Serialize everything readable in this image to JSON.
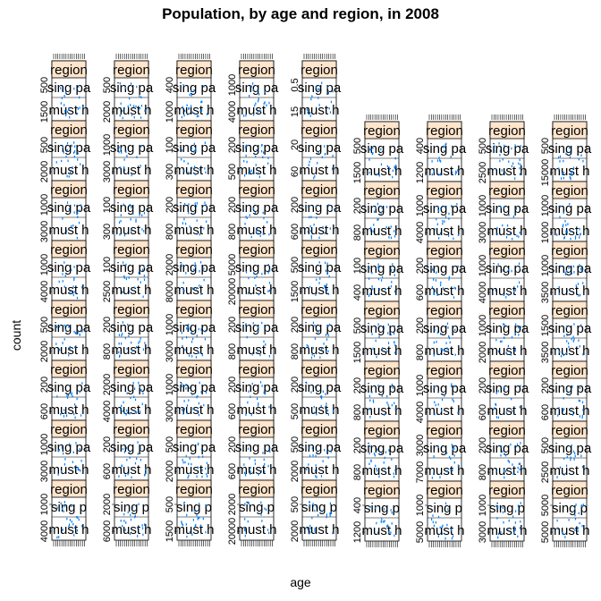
{
  "chart_data": {
    "type": "scatter",
    "title": "Population, by age and region, in 2008",
    "xlabel": "age",
    "ylabel": "count",
    "strip_label": "region",
    "strip_text_row_1": "sing pa",
    "strip_text_row_2": "must h",
    "strip_text_alt": "sing p",
    "point_color": "#0080ff",
    "strip_color": "#ffe5cc",
    "panel_columns": [
      {
        "rows": 8,
        "y_ticks": [
          [
            "500",
            "1500"
          ],
          [
            "500",
            "2000"
          ],
          [
            "1000",
            "3000"
          ],
          [
            "1000",
            "4000"
          ],
          [
            "500",
            "2000"
          ],
          [
            "200",
            "600"
          ],
          [
            "1000",
            "3000"
          ],
          [
            "1000",
            "4000"
          ]
        ]
      },
      {
        "rows": 8,
        "y_ticks": [
          [
            "500",
            "2000"
          ],
          [
            "1000",
            "3000"
          ],
          [
            "100",
            "300"
          ],
          [
            "100",
            "2500"
          ],
          [
            "200",
            "800"
          ],
          [
            "2000",
            "4000"
          ],
          [
            "200",
            "600"
          ],
          [
            "2000",
            "6000"
          ]
        ]
      },
      {
        "rows": 8,
        "y_ticks": [
          [
            "400",
            "1000"
          ],
          [
            "100",
            "300"
          ],
          [
            "200",
            "800"
          ],
          [
            "2000",
            "8000"
          ],
          [
            "1000",
            "3000"
          ],
          [
            "1000",
            "3000"
          ],
          [
            "500",
            "2000"
          ],
          [
            "500",
            "1500"
          ]
        ]
      },
      {
        "rows": 8,
        "y_ticks": [
          [
            "1000",
            "4000"
          ],
          [
            "200",
            "500"
          ],
          [
            "200",
            "800"
          ],
          [
            "5000",
            "20000"
          ],
          [
            "200",
            "800"
          ],
          [
            "200",
            "600"
          ],
          [
            "200",
            "600"
          ],
          [
            "2000",
            "20000"
          ]
        ]
      },
      {
        "rows": 8,
        "y_ticks": [
          [
            "0.5",
            "15"
          ],
          [
            "20",
            "60"
          ],
          [
            "200",
            "600"
          ],
          [
            "500",
            "1500"
          ],
          [
            "200",
            "800"
          ],
          [
            "200",
            "500"
          ],
          [
            "500",
            "2000"
          ],
          [
            "500",
            "2000"
          ]
        ]
      },
      {
        "rows": 7,
        "y_ticks": [
          [
            "500",
            "1500"
          ],
          [
            "200",
            "800"
          ],
          [
            "100",
            "400"
          ],
          [
            "500",
            "1500"
          ],
          [
            "200",
            "800"
          ],
          [
            "200",
            "800"
          ],
          [
            "400",
            "1200"
          ]
        ]
      },
      {
        "rows": 7,
        "y_ticks": [
          [
            "400",
            "1200"
          ],
          [
            "1000",
            "4000"
          ],
          [
            "200",
            "600"
          ],
          [
            "200",
            "800"
          ],
          [
            "1000",
            "4000"
          ],
          [
            "3000",
            "7000"
          ],
          [
            "1000",
            "5000"
          ]
        ]
      },
      {
        "rows": 7,
        "y_ticks": [
          [
            "500",
            "2500"
          ],
          [
            "1000",
            "3000"
          ],
          [
            "1000",
            "4000"
          ],
          [
            "1000",
            "2000"
          ],
          [
            "200",
            "600"
          ],
          [
            "200",
            "800"
          ],
          [
            "1000",
            "3000"
          ]
        ]
      },
      {
        "rows": 7,
        "y_ticks": [
          [
            "500",
            "15000"
          ],
          [
            "1000",
            "1000"
          ],
          [
            "1000",
            "3500"
          ],
          [
            "1500",
            "3500"
          ],
          [
            "200",
            "600"
          ],
          [
            "500",
            "2500"
          ],
          [
            "5000",
            "5000"
          ]
        ]
      }
    ]
  }
}
